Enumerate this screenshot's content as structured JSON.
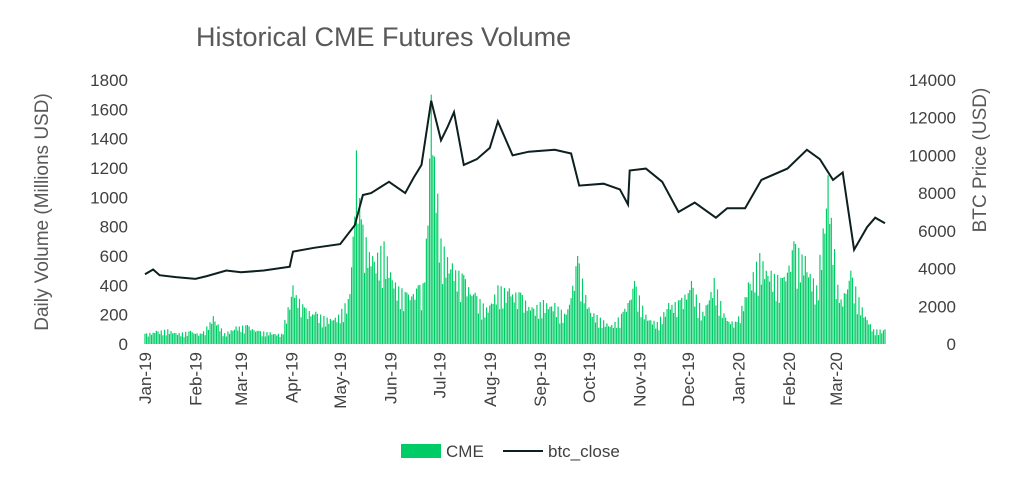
{
  "chart_data": {
    "type": "bar+line",
    "title": "Historical CME Futures Volume",
    "ylabel": "Daily Volume (Millions USD)",
    "y2label": "BTC Price (USD)",
    "ylim": [
      0,
      1800
    ],
    "y2lim": [
      0,
      14000
    ],
    "yticks": [
      "0",
      "200",
      "400",
      "600",
      "800",
      "1000",
      "1200",
      "1400",
      "1600",
      "1800"
    ],
    "y2ticks": [
      "0",
      "2000",
      "4000",
      "6000",
      "8000",
      "10000",
      "12000",
      "14000"
    ],
    "x_tick_labels": [
      "Jan-19",
      "Feb-19",
      "Mar-19",
      "Apr-19",
      "May-19",
      "Jun-19",
      "Jul-19",
      "Aug-19",
      "Sep-19",
      "Oct-19",
      "Nov-19",
      "Dec-19",
      "Jan-20",
      "Feb-20",
      "Mar-20"
    ],
    "x_range": [
      "2019-01-01",
      "2020-03-31"
    ],
    "legend_position": "bottom",
    "grid": false,
    "colors": {
      "volume": "#00cc66",
      "price": "#0d1f1f"
    },
    "series": [
      {
        "name": "CME",
        "type": "bar",
        "axis": "left",
        "points": [
          [
            "2019-01-01",
            70
          ],
          [
            "2019-01-08",
            90
          ],
          [
            "2019-01-15",
            100
          ],
          [
            "2019-01-22",
            75
          ],
          [
            "2019-01-29",
            90
          ],
          [
            "2019-02-05",
            70
          ],
          [
            "2019-02-12",
            190
          ],
          [
            "2019-02-19",
            75
          ],
          [
            "2019-02-26",
            120
          ],
          [
            "2019-03-05",
            130
          ],
          [
            "2019-03-12",
            90
          ],
          [
            "2019-03-19",
            80
          ],
          [
            "2019-03-26",
            70
          ],
          [
            "2019-04-02",
            400
          ],
          [
            "2019-04-09",
            250
          ],
          [
            "2019-04-16",
            220
          ],
          [
            "2019-04-23",
            180
          ],
          [
            "2019-04-30",
            200
          ],
          [
            "2019-05-07",
            340
          ],
          [
            "2019-05-11",
            1320
          ],
          [
            "2019-05-14",
            850
          ],
          [
            "2019-05-21",
            600
          ],
          [
            "2019-05-28",
            700
          ],
          [
            "2019-06-04",
            420
          ],
          [
            "2019-06-11",
            350
          ],
          [
            "2019-06-18",
            400
          ],
          [
            "2019-06-22",
            420
          ],
          [
            "2019-06-26",
            1700
          ],
          [
            "2019-07-02",
            720
          ],
          [
            "2019-07-09",
            550
          ],
          [
            "2019-07-16",
            470
          ],
          [
            "2019-07-23",
            350
          ],
          [
            "2019-07-30",
            250
          ],
          [
            "2019-08-06",
            400
          ],
          [
            "2019-08-13",
            380
          ],
          [
            "2019-08-20",
            350
          ],
          [
            "2019-08-27",
            250
          ],
          [
            "2019-09-03",
            300
          ],
          [
            "2019-09-10",
            280
          ],
          [
            "2019-09-17",
            200
          ],
          [
            "2019-09-24",
            600
          ],
          [
            "2019-10-01",
            250
          ],
          [
            "2019-10-08",
            180
          ],
          [
            "2019-10-15",
            130
          ],
          [
            "2019-10-22",
            220
          ],
          [
            "2019-10-29",
            430
          ],
          [
            "2019-11-05",
            200
          ],
          [
            "2019-11-12",
            150
          ],
          [
            "2019-11-19",
            280
          ],
          [
            "2019-11-26",
            300
          ],
          [
            "2019-12-03",
            430
          ],
          [
            "2019-12-10",
            220
          ],
          [
            "2019-12-17",
            450
          ],
          [
            "2019-12-24",
            180
          ],
          [
            "2019-12-31",
            150
          ],
          [
            "2020-01-07",
            420
          ],
          [
            "2020-01-14",
            620
          ],
          [
            "2020-01-21",
            500
          ],
          [
            "2020-01-28",
            450
          ],
          [
            "2020-02-04",
            700
          ],
          [
            "2020-02-11",
            600
          ],
          [
            "2020-02-18",
            400
          ],
          [
            "2020-02-25",
            1150
          ],
          [
            "2020-03-03",
            280
          ],
          [
            "2020-03-10",
            500
          ],
          [
            "2020-03-17",
            250
          ],
          [
            "2020-03-24",
            100
          ],
          [
            "2020-03-31",
            100
          ]
        ]
      },
      {
        "name": "btc_close",
        "type": "line",
        "axis": "right",
        "points": [
          [
            "2019-01-01",
            3700
          ],
          [
            "2019-01-06",
            3950
          ],
          [
            "2019-01-10",
            3650
          ],
          [
            "2019-01-20",
            3550
          ],
          [
            "2019-02-01",
            3450
          ],
          [
            "2019-02-08",
            3600
          ],
          [
            "2019-02-20",
            3900
          ],
          [
            "2019-03-01",
            3800
          ],
          [
            "2019-03-15",
            3900
          ],
          [
            "2019-03-31",
            4100
          ],
          [
            "2019-04-02",
            4900
          ],
          [
            "2019-04-15",
            5100
          ],
          [
            "2019-05-01",
            5300
          ],
          [
            "2019-05-10",
            6300
          ],
          [
            "2019-05-15",
            7900
          ],
          [
            "2019-05-20",
            8000
          ],
          [
            "2019-05-31",
            8600
          ],
          [
            "2019-06-10",
            8000
          ],
          [
            "2019-06-15",
            8800
          ],
          [
            "2019-06-20",
            9500
          ],
          [
            "2019-06-26",
            12900
          ],
          [
            "2019-07-02",
            10800
          ],
          [
            "2019-07-06",
            11500
          ],
          [
            "2019-07-10",
            12300
          ],
          [
            "2019-07-16",
            9500
          ],
          [
            "2019-07-24",
            9800
          ],
          [
            "2019-08-01",
            10400
          ],
          [
            "2019-08-06",
            11800
          ],
          [
            "2019-08-15",
            10000
          ],
          [
            "2019-08-25",
            10200
          ],
          [
            "2019-09-10",
            10300
          ],
          [
            "2019-09-20",
            10100
          ],
          [
            "2019-09-25",
            8400
          ],
          [
            "2019-10-10",
            8500
          ],
          [
            "2019-10-20",
            8200
          ],
          [
            "2019-10-25",
            7400
          ],
          [
            "2019-10-26",
            9200
          ],
          [
            "2019-11-05",
            9300
          ],
          [
            "2019-11-15",
            8600
          ],
          [
            "2019-11-25",
            7000
          ],
          [
            "2019-12-05",
            7500
          ],
          [
            "2019-12-18",
            6700
          ],
          [
            "2019-12-25",
            7200
          ],
          [
            "2020-01-05",
            7200
          ],
          [
            "2020-01-15",
            8700
          ],
          [
            "2020-01-31",
            9300
          ],
          [
            "2020-02-12",
            10300
          ],
          [
            "2020-02-20",
            9800
          ],
          [
            "2020-02-28",
            8700
          ],
          [
            "2020-03-05",
            9100
          ],
          [
            "2020-03-12",
            5000
          ],
          [
            "2020-03-20",
            6200
          ],
          [
            "2020-03-25",
            6700
          ],
          [
            "2020-03-31",
            6400
          ]
        ]
      }
    ]
  }
}
